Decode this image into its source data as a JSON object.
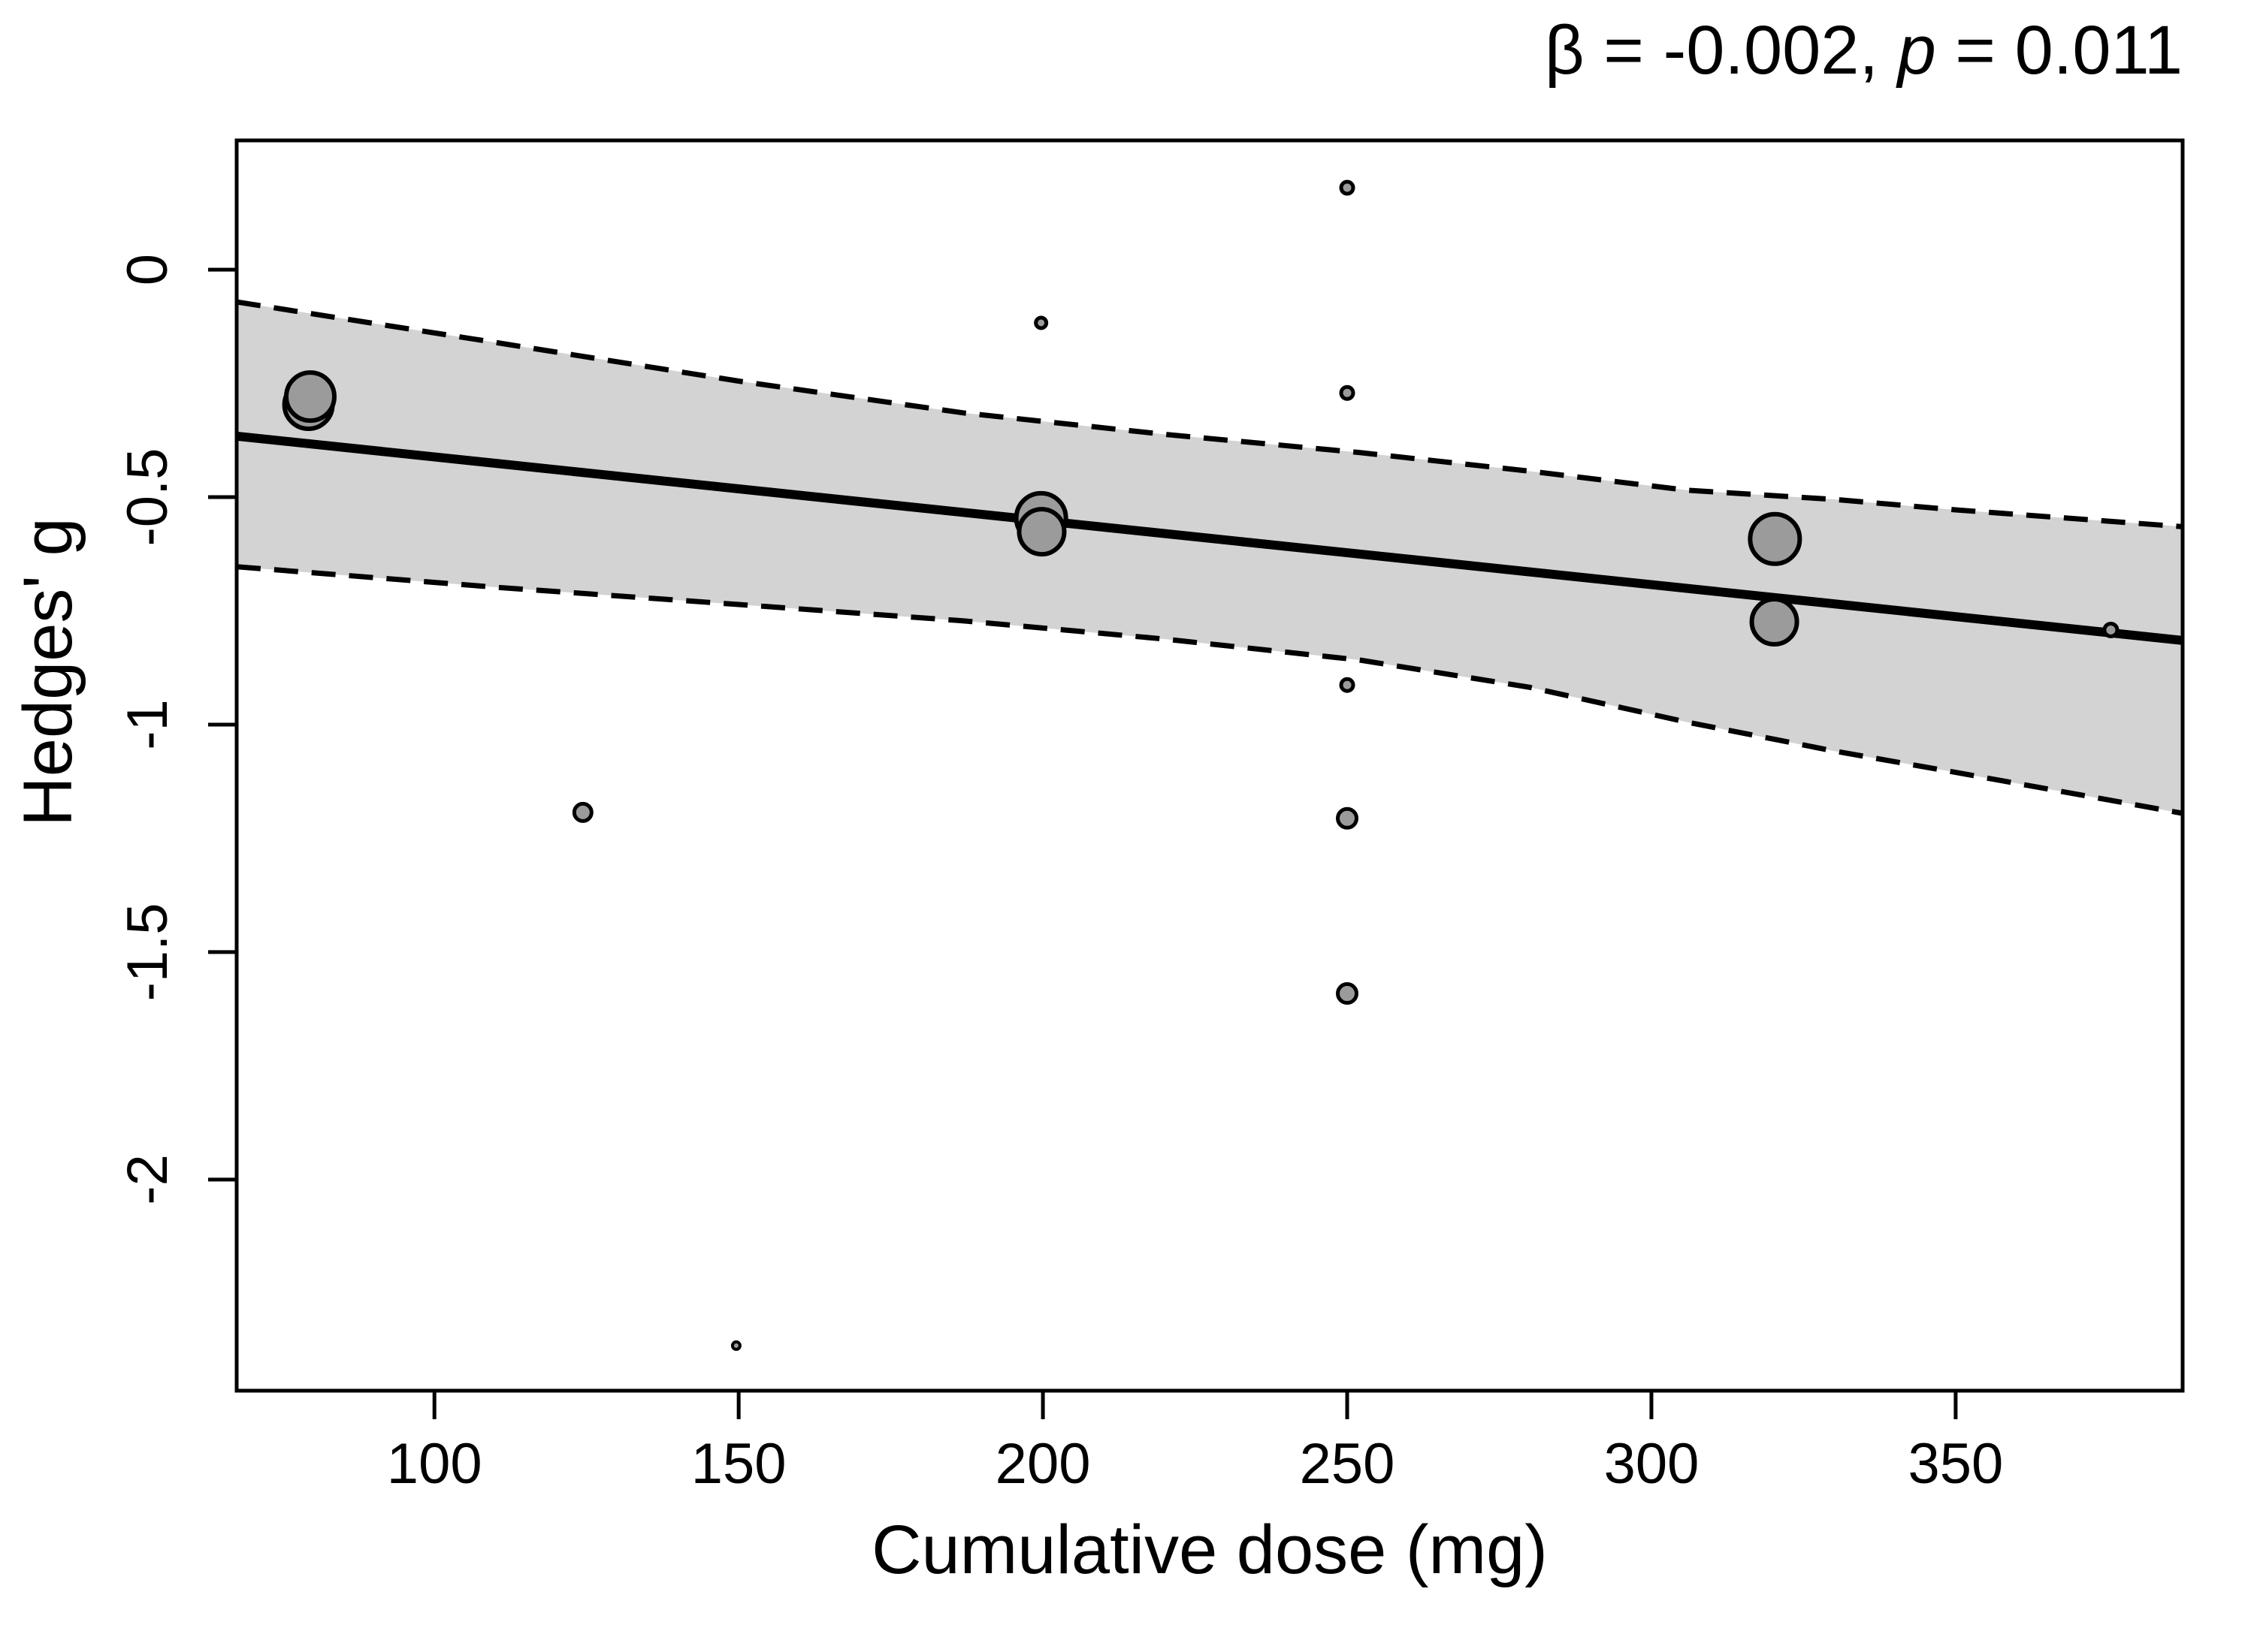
{
  "title": {
    "beta_part": "β = -0.002, ",
    "p_label": "p",
    "p_part": " = 0.011"
  },
  "chart_data": {
    "type": "scatter",
    "subtype": "meta-regression-bubble-plot",
    "title": "β = -0.002, p = 0.011",
    "xlabel": "Cumulative dose (mg)",
    "ylabel": "Hedges' g",
    "xlim": [
      67.5,
      387.3
    ],
    "ylim": [
      -2.464,
      0.284
    ],
    "x_ticks": [
      {
        "value": 100,
        "label": "100"
      },
      {
        "value": 150,
        "label": "150"
      },
      {
        "value": 200,
        "label": "200"
      },
      {
        "value": 250,
        "label": "250"
      },
      {
        "value": 300,
        "label": "300"
      },
      {
        "value": 350,
        "label": "350"
      }
    ],
    "y_ticks": [
      {
        "value": 0,
        "label": "0"
      },
      {
        "value": -0.5,
        "label": "-0.5"
      },
      {
        "value": -1,
        "label": "-1"
      },
      {
        "value": -1.5,
        "label": "-1.5"
      },
      {
        "value": -2,
        "label": "-2"
      }
    ],
    "grid": false,
    "legend": null,
    "regression": {
      "beta": -0.002,
      "p_value": 0.011,
      "line": [
        {
          "dose": 67.5,
          "g": -0.366
        },
        {
          "dose": 387.3,
          "g": -0.815
        }
      ]
    },
    "ci_band": {
      "upper": [
        {
          "dose": 67.5,
          "g": -0.071
        },
        {
          "dose": 110,
          "g": -0.16
        },
        {
          "dose": 150,
          "g": -0.245
        },
        {
          "dose": 187,
          "g": -0.315
        },
        {
          "dose": 220,
          "g": -0.362
        },
        {
          "dose": 252,
          "g": -0.402
        },
        {
          "dose": 280,
          "g": -0.443
        },
        {
          "dose": 306,
          "g": -0.485
        },
        {
          "dose": 330,
          "g": -0.505
        },
        {
          "dose": 350,
          "g": -0.528
        },
        {
          "dose": 387.3,
          "g": -0.565
        }
      ],
      "lower": [
        {
          "dose": 67.5,
          "g": -0.653
        },
        {
          "dose": 110,
          "g": -0.698
        },
        {
          "dose": 150,
          "g": -0.736
        },
        {
          "dose": 187,
          "g": -0.772
        },
        {
          "dose": 220,
          "g": -0.812
        },
        {
          "dose": 252,
          "g": -0.858
        },
        {
          "dose": 280,
          "g": -0.918
        },
        {
          "dose": 306,
          "g": -0.995
        },
        {
          "dose": 330,
          "g": -1.058
        },
        {
          "dose": 350,
          "g": -1.105
        },
        {
          "dose": 387.3,
          "g": -1.195
        }
      ]
    },
    "points": [
      {
        "dose": 79.3,
        "g": -0.297,
        "r": 32,
        "sw": 6
      },
      {
        "dose": 79.6,
        "g": -0.279,
        "r": 32,
        "sw": 6
      },
      {
        "dose": 124.4,
        "g": -1.193,
        "r": 11.5,
        "sw": 5
      },
      {
        "dose": 149.6,
        "g": -2.365,
        "r": 5,
        "sw": 4
      },
      {
        "dose": 199.7,
        "g": -0.117,
        "r": 7,
        "sw": 5
      },
      {
        "dose": 199.7,
        "g": -0.546,
        "r": 33,
        "sw": 6
      },
      {
        "dose": 199.8,
        "g": -0.576,
        "r": 30,
        "sw": 6
      },
      {
        "dose": 250,
        "g": 0.18,
        "r": 8,
        "sw": 5
      },
      {
        "dose": 250,
        "g": -0.271,
        "r": 8,
        "sw": 5
      },
      {
        "dose": 250,
        "g": -0.913,
        "r": 8,
        "sw": 5
      },
      {
        "dose": 250,
        "g": -1.206,
        "r": 12.5,
        "sw": 5
      },
      {
        "dose": 250,
        "g": -1.591,
        "r": 12.5,
        "sw": 5
      },
      {
        "dose": 320.3,
        "g": -0.592,
        "r": 33,
        "sw": 6
      },
      {
        "dose": 320.2,
        "g": -0.774,
        "r": 30,
        "sw": 6
      },
      {
        "dose": 375.5,
        "g": -0.792,
        "r": 8.5,
        "sw": 5
      }
    ]
  },
  "style": {
    "band_fill": "#d3d3d3",
    "point_fill": "#9b9b9b",
    "stroke_color": "#000000",
    "background": "#ffffff"
  }
}
